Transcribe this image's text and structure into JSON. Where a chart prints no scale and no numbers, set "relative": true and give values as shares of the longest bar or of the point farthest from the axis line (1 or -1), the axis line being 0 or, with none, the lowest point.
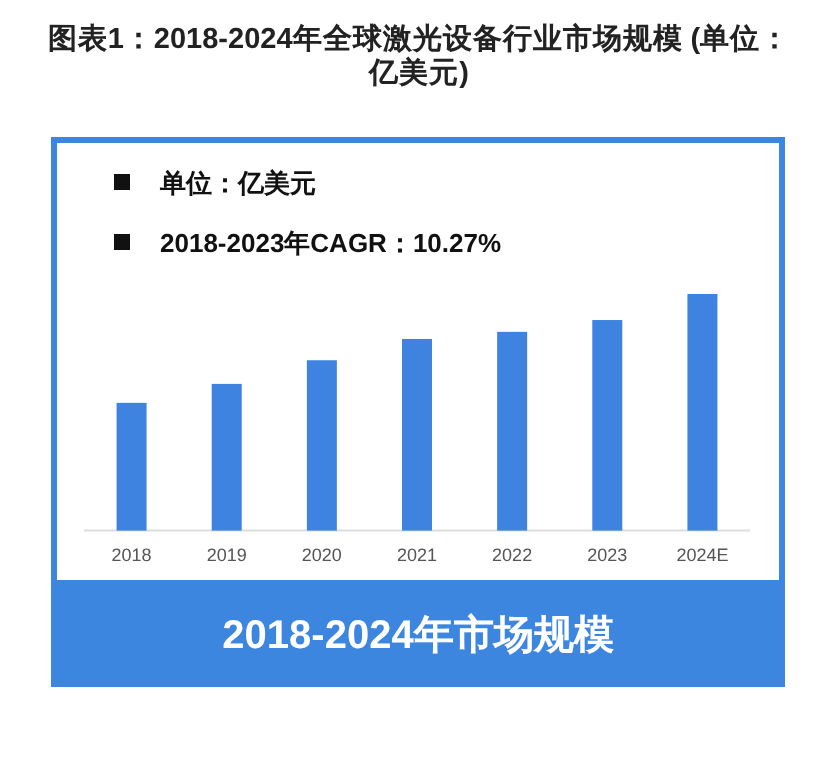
{
  "chart_data": {
    "type": "bar",
    "title": "图表1：2018-2024年全球激光设备行业市场规模 (单位：亿美元)",
    "subtitle": "2018-2024年市场规模",
    "annotations": [
      "单位：亿美元",
      "2018-2023年CAGR：10.27%"
    ],
    "categories": [
      "2018",
      "2019",
      "2020",
      "2021",
      "2022",
      "2023",
      "2024E"
    ],
    "values": [
      0.54,
      0.62,
      0.72,
      0.81,
      0.84,
      0.89,
      1
    ],
    "color": "#3f83e0",
    "relative": true
  }
}
